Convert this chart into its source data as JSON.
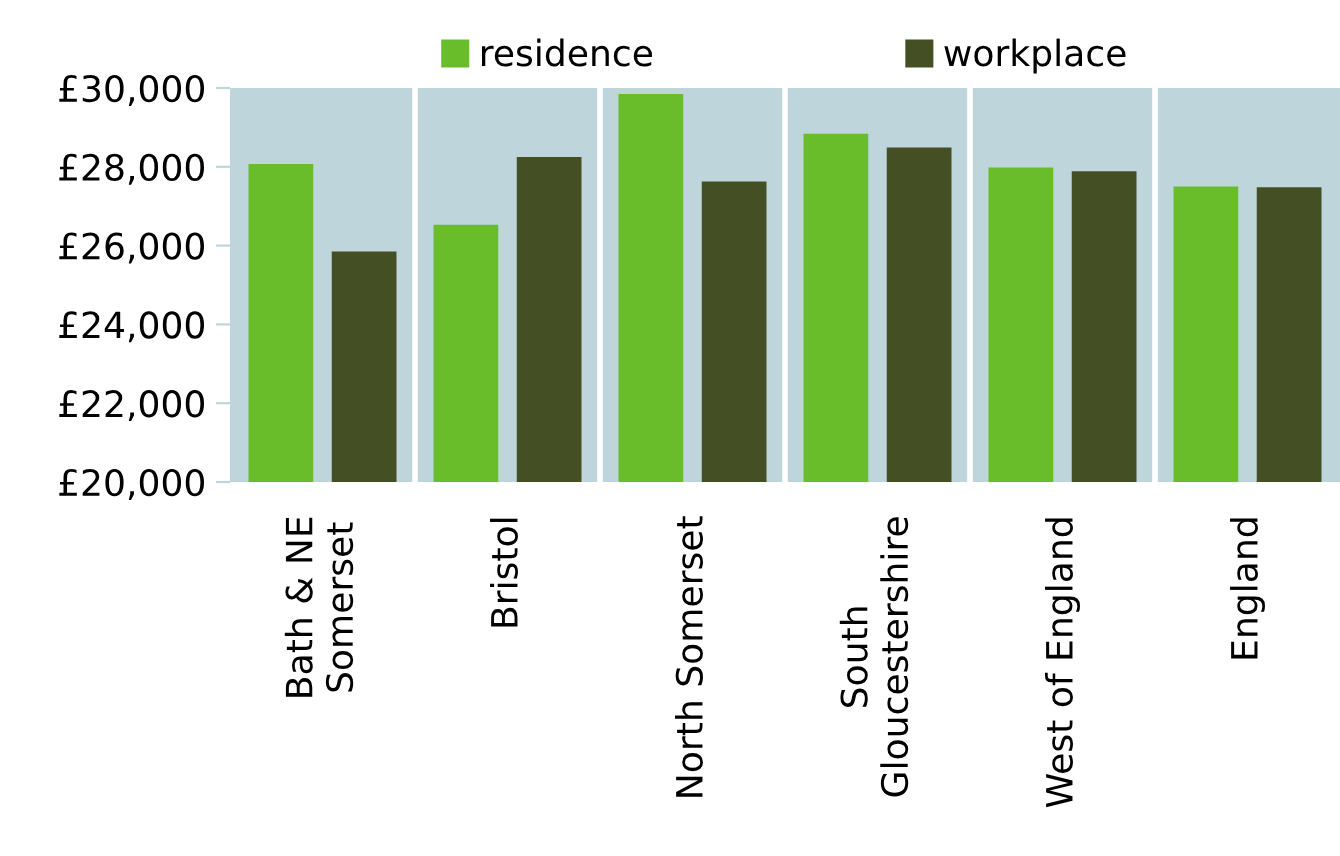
{
  "chart_data": {
    "type": "bar",
    "categories": [
      "Bath & NE\nSomerset",
      "Bristol",
      "North Somerset",
      "South\nGloucestershire",
      "West of England",
      "England"
    ],
    "series": [
      {
        "name": "residence",
        "color": "#6abd2a",
        "values": [
          28070,
          26530,
          29850,
          28840,
          27980,
          27500
        ]
      },
      {
        "name": "workplace",
        "color": "#445023",
        "values": [
          25850,
          28250,
          27630,
          28490,
          27890,
          27480
        ]
      }
    ],
    "ylim": [
      20000,
      30000
    ],
    "yticks": [
      {
        "value": 20000,
        "label": "£20,000"
      },
      {
        "value": 22000,
        "label": "£22,000"
      },
      {
        "value": 24000,
        "label": "£24,000"
      },
      {
        "value": 26000,
        "label": "£26,000"
      },
      {
        "value": 28000,
        "label": "£28,000"
      },
      {
        "value": 30000,
        "label": "£30,000"
      }
    ],
    "grid": "x",
    "legend": "top"
  }
}
